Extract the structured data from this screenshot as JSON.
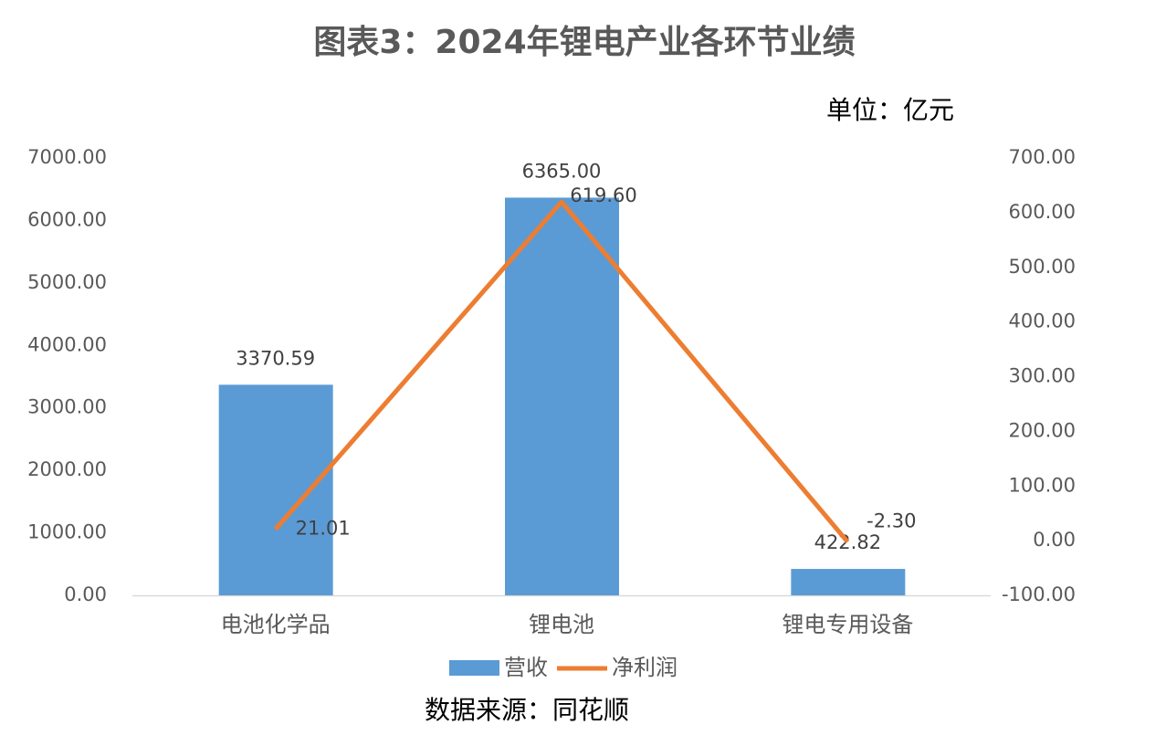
{
  "chart_data": {
    "type": "bar-line",
    "title": "图表3：2024年锂电产业各环节业绩",
    "subtitle": "单位：亿元",
    "source": "数据来源：同花顺",
    "categories": [
      "电池化学品",
      "锂电池",
      "锂电专用设备"
    ],
    "series": [
      {
        "name": "营收",
        "type": "bar",
        "color": "#5b9bd5",
        "values": [
          3370.59,
          6365.0,
          422.82
        ],
        "value_labels": [
          "3370.59",
          "6365.00",
          "422.82"
        ]
      },
      {
        "name": "净利润",
        "type": "line",
        "axis": "y2",
        "color": "#ed7d31",
        "values": [
          21.01,
          619.6,
          -2.3
        ],
        "value_labels": [
          "21.01",
          "619.60",
          "-2.30"
        ]
      }
    ],
    "ylim": [
      0,
      7000
    ],
    "yticks": [
      {
        "value": 0,
        "label": "0.00"
      },
      {
        "value": 1000,
        "label": "1000.00"
      },
      {
        "value": 2000,
        "label": "2000.00"
      },
      {
        "value": 3000,
        "label": "3000.00"
      },
      {
        "value": 4000,
        "label": "4000.00"
      },
      {
        "value": 5000,
        "label": "5000.00"
      },
      {
        "value": 6000,
        "label": "6000.00"
      },
      {
        "value": 7000,
        "label": "7000.00"
      }
    ],
    "y2lim": [
      -100,
      700
    ],
    "y2ticks": [
      {
        "value": -100,
        "label": "-100.00"
      },
      {
        "value": 0,
        "label": "0.00"
      },
      {
        "value": 100,
        "label": "100.00"
      },
      {
        "value": 200,
        "label": "200.00"
      },
      {
        "value": 300,
        "label": "300.00"
      },
      {
        "value": 400,
        "label": "400.00"
      },
      {
        "value": 500,
        "label": "500.00"
      },
      {
        "value": 600,
        "label": "600.00"
      },
      {
        "value": 700,
        "label": "700.00"
      }
    ],
    "grid": false,
    "legend": "bottom"
  }
}
